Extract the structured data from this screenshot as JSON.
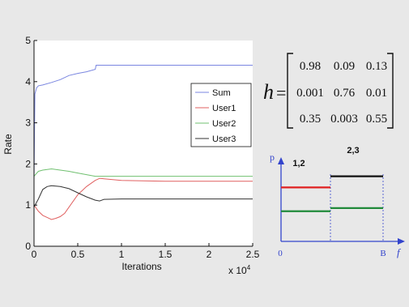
{
  "chart_data": [
    {
      "type": "line",
      "title": "",
      "xlabel": "Iterations",
      "ylabel": "Rate",
      "x_multiplier_label": "x 10",
      "x_multiplier_exponent": "4",
      "xlim": [
        0,
        2.5
      ],
      "ylim": [
        0,
        5
      ],
      "xticks": [
        "0",
        "0.5",
        "1",
        "1.5",
        "2",
        "2.5"
      ],
      "yticks": [
        "0",
        "1",
        "2",
        "3",
        "4",
        "5"
      ],
      "grid": false,
      "legend_position": "right",
      "series": [
        {
          "name": "Sum",
          "color": "#7a86e0",
          "x": [
            0,
            0.01,
            0.03,
            0.05,
            0.1,
            0.2,
            0.3,
            0.4,
            0.5,
            0.6,
            0.7,
            0.71,
            0.8,
            1.0,
            1.5,
            2.0,
            2.5
          ],
          "y": [
            1.6,
            3.7,
            3.85,
            3.9,
            3.92,
            3.98,
            4.05,
            4.15,
            4.2,
            4.24,
            4.3,
            4.4,
            4.4,
            4.4,
            4.4,
            4.4,
            4.4
          ]
        },
        {
          "name": "User1",
          "color": "#e06060",
          "x": [
            0,
            0.05,
            0.1,
            0.15,
            0.2,
            0.25,
            0.3,
            0.35,
            0.4,
            0.45,
            0.5,
            0.6,
            0.7,
            0.75,
            1.0,
            1.5,
            2.0,
            2.5
          ],
          "y": [
            1.0,
            0.85,
            0.75,
            0.7,
            0.65,
            0.68,
            0.72,
            0.8,
            0.95,
            1.1,
            1.25,
            1.45,
            1.6,
            1.65,
            1.6,
            1.58,
            1.58,
            1.58
          ]
        },
        {
          "name": "User2",
          "color": "#70c070",
          "x": [
            0,
            0.05,
            0.1,
            0.2,
            0.3,
            0.4,
            0.5,
            0.6,
            0.7,
            0.8,
            1.0,
            1.5,
            2.0,
            2.5
          ],
          "y": [
            1.7,
            1.82,
            1.85,
            1.88,
            1.85,
            1.82,
            1.78,
            1.74,
            1.7,
            1.7,
            1.7,
            1.7,
            1.7,
            1.7
          ]
        },
        {
          "name": "User3",
          "color": "#333333",
          "x": [
            0,
            0.05,
            0.1,
            0.15,
            0.2,
            0.3,
            0.4,
            0.5,
            0.6,
            0.7,
            0.75,
            0.8,
            1.0,
            1.5,
            2.0,
            2.5
          ],
          "y": [
            0.95,
            1.15,
            1.38,
            1.45,
            1.47,
            1.45,
            1.4,
            1.3,
            1.2,
            1.12,
            1.1,
            1.14,
            1.15,
            1.15,
            1.15,
            1.15
          ]
        }
      ]
    },
    {
      "type": "bar",
      "title": "",
      "ylabel": "p",
      "xlabel": "f",
      "x_start_label": "0",
      "x_end_label": "B",
      "groups": [
        {
          "label": "1,2",
          "levels": [
            {
              "color": "#e02020",
              "value": 0.68
            },
            {
              "color": "#208a3a",
              "value": 0.38
            }
          ]
        },
        {
          "label": "2,3",
          "levels": [
            {
              "color": "#111111",
              "value": 0.82
            },
            {
              "color": "#208a3a",
              "value": 0.42
            }
          ]
        }
      ]
    }
  ],
  "matrix": {
    "symbol": "h",
    "equals": "=",
    "rows": [
      [
        "0.98",
        "0.09",
        "0.13"
      ],
      [
        "0.001",
        "0.76",
        "0.01"
      ],
      [
        "0.35",
        "0.003",
        "0.55"
      ]
    ]
  }
}
